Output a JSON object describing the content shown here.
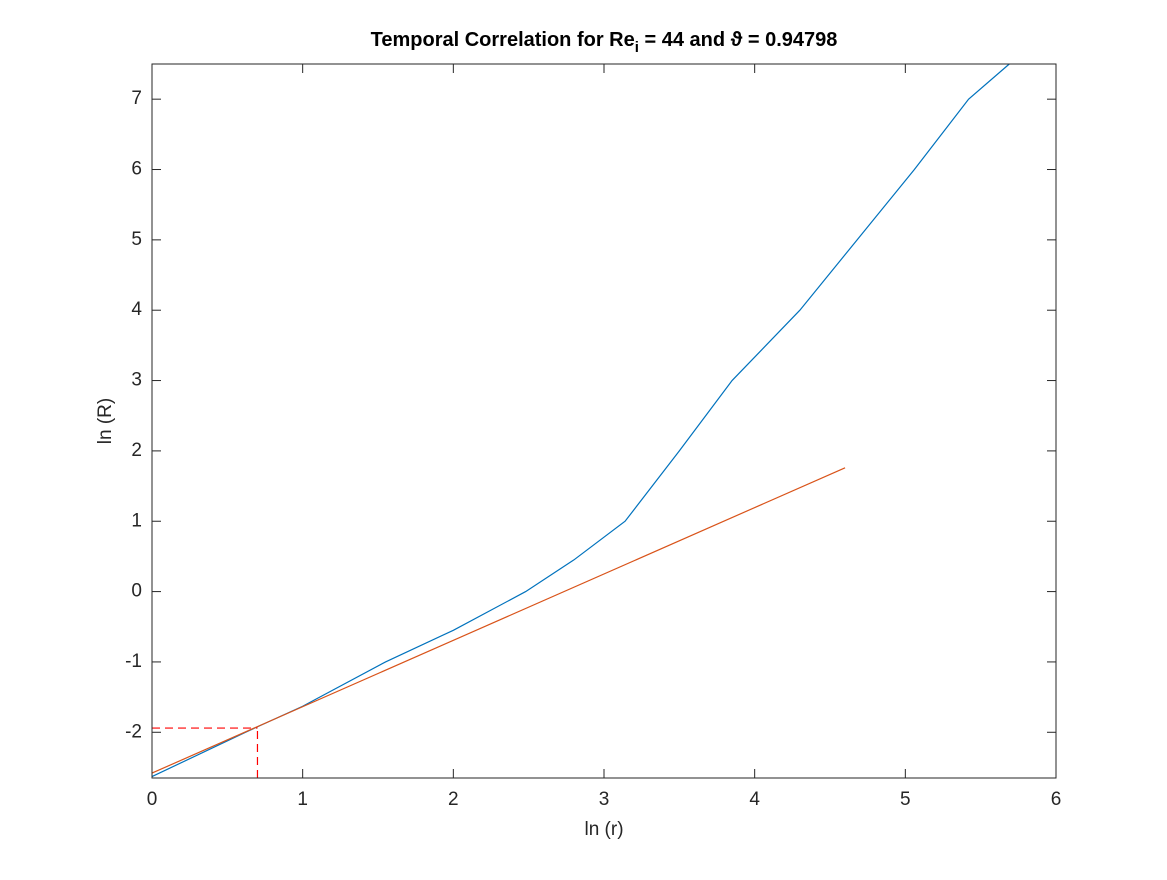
{
  "chart_data": {
    "type": "line",
    "title": {
      "text": "Temporal Correlation for Re",
      "subscript": "i",
      "rest": " = 44 and ϑ = 0.94798"
    },
    "xlabel": "ln (r)",
    "ylabel": "ln (R)",
    "xlim": [
      0,
      6
    ],
    "ylim": [
      -2.65,
      7.5
    ],
    "xticks": [
      0,
      1,
      2,
      3,
      4,
      5,
      6
    ],
    "yticks": [
      -2,
      -1,
      0,
      1,
      2,
      3,
      4,
      5,
      6,
      7
    ],
    "series": [
      {
        "color": "#0072bd",
        "x": [
          0,
          0.62,
          1.0,
          1.55,
          2.0,
          2.48,
          2.8,
          3.14,
          3.5,
          3.85,
          4.3,
          4.68,
          5.06,
          5.42,
          5.69
        ],
        "values": [
          -2.63,
          -2.0,
          -1.63,
          -1.0,
          -0.55,
          0,
          0.45,
          1,
          2,
          3,
          4,
          5,
          6,
          7,
          7.5
        ]
      },
      {
        "color": "#d95319",
        "x": [
          0,
          4.6
        ],
        "values": [
          -2.58,
          1.76
        ]
      }
    ],
    "guide": {
      "x": 0.7,
      "y": -1.94,
      "color": "#ff0000"
    }
  }
}
